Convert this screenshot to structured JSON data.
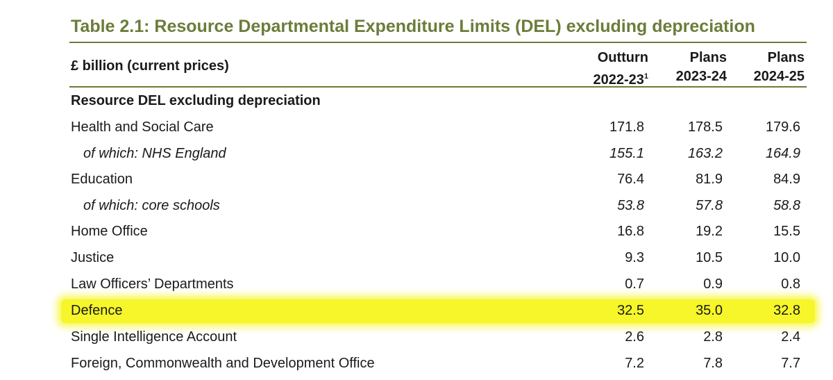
{
  "table": {
    "title": "Table 2.1: Resource Departmental Expenditure Limits (DEL) excluding depreciation",
    "units": "£ billion (current prices)",
    "columns": [
      {
        "line1": "Outturn",
        "line2": "2022-23",
        "note": "1"
      },
      {
        "line1": "Plans",
        "line2": "2023-24",
        "note": ""
      },
      {
        "line1": "Plans",
        "line2": "2024-25",
        "note": ""
      }
    ],
    "rows": [
      {
        "label": "Resource DEL excluding depreciation",
        "values": [
          "",
          "",
          ""
        ],
        "style": "section"
      },
      {
        "label": "Health and Social Care",
        "values": [
          "171.8",
          "178.5",
          "179.6"
        ],
        "style": "normal"
      },
      {
        "label": "of which: NHS England",
        "values": [
          "155.1",
          "163.2",
          "164.9"
        ],
        "style": "italic"
      },
      {
        "label": "Education",
        "values": [
          "76.4",
          "81.9",
          "84.9"
        ],
        "style": "normal"
      },
      {
        "label": "of which: core schools",
        "values": [
          "53.8",
          "57.8",
          "58.8"
        ],
        "style": "italic"
      },
      {
        "label": "Home Office",
        "values": [
          "16.8",
          "19.2",
          "15.5"
        ],
        "style": "normal"
      },
      {
        "label": "Justice",
        "values": [
          "9.3",
          "10.5",
          "10.0"
        ],
        "style": "normal"
      },
      {
        "label": "Law Officers’ Departments",
        "values": [
          "0.7",
          "0.9",
          "0.8"
        ],
        "style": "normal"
      },
      {
        "label": "Defence",
        "values": [
          "32.5",
          "35.0",
          "32.8"
        ],
        "style": "highlight"
      },
      {
        "label": "Single Intelligence Account",
        "values": [
          "2.6",
          "2.8",
          "2.4"
        ],
        "style": "normal"
      },
      {
        "label": "Foreign, Commonwealth and Development Office",
        "values": [
          "7.2",
          "7.8",
          "7.7"
        ],
        "style": "normal"
      }
    ]
  }
}
